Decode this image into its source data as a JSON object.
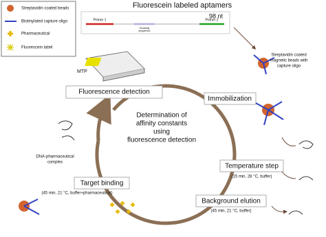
{
  "legend": [
    {
      "label": "Streptavidin coated beads"
    },
    {
      "label": "Biotinylated capture oligo"
    },
    {
      "label": "Pharmaceutical"
    },
    {
      "label": "Fluorescein label"
    }
  ],
  "aptamer": {
    "title": "Fluorescein labeled aptamers",
    "length": "98 nt",
    "primer1": "Primer 1",
    "primer2": "Primer 2",
    "docking": [
      "Docking",
      "sequence"
    ]
  },
  "mtp": "MTP",
  "steps": [
    {
      "label": "Fluorescence detection"
    },
    {
      "label": "Immobilization"
    },
    {
      "label": "Temperature step",
      "detail": "(15 min, 28 °C, buffer)"
    },
    {
      "label": "Background elution",
      "detail": "(45 min, 21 °C, buffer)"
    },
    {
      "label": "Target binding",
      "detail": "(45 min, 21 °C, buffer+pharmaceutical)"
    }
  ],
  "center": [
    "Determination of",
    "affinity constants",
    "using",
    "fluorescence detection"
  ],
  "beads_note": [
    "Streptavidin coated",
    "magnetic beads with",
    "capture oligo"
  ],
  "complex_note": [
    "DNA-pharmaceutical",
    "complex"
  ]
}
